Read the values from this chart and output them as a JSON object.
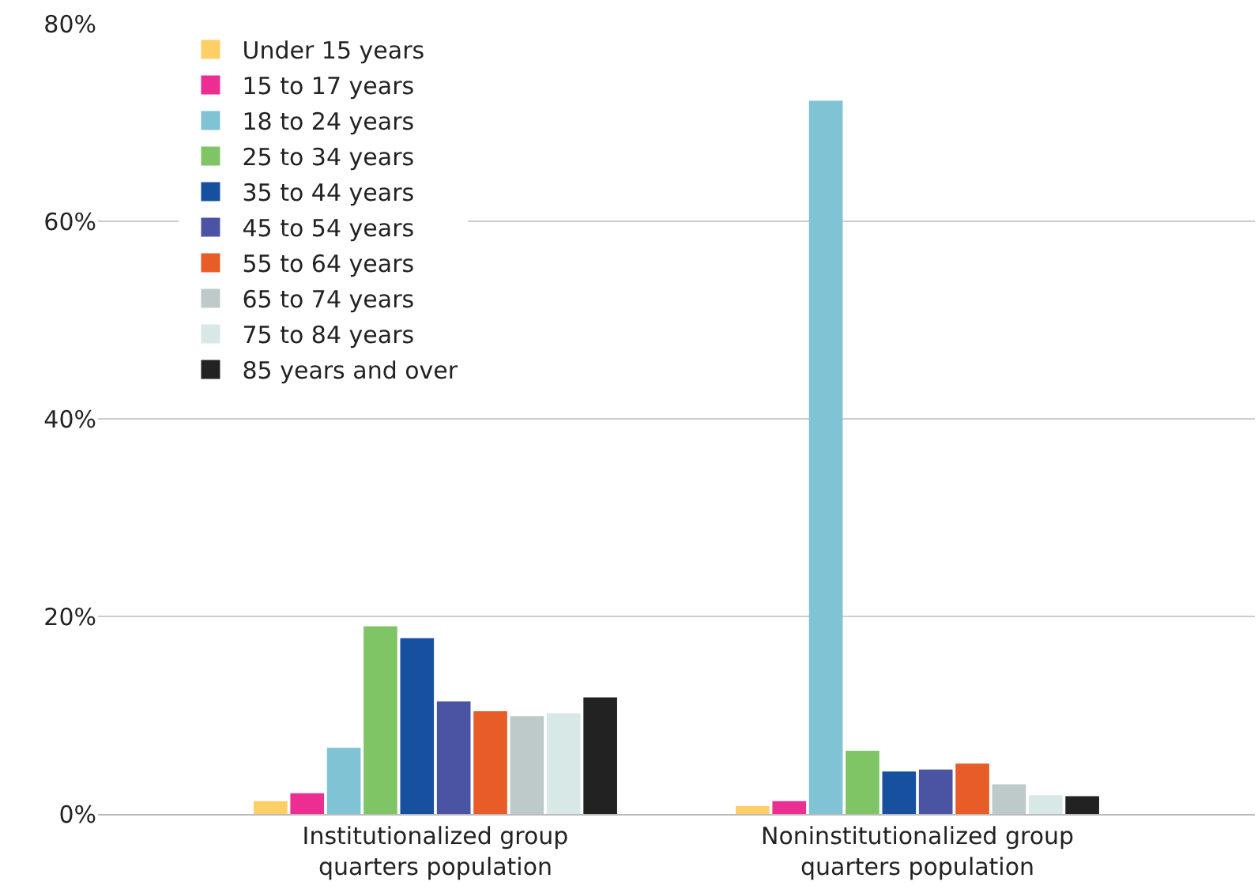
{
  "chart_data": {
    "type": "bar",
    "categories": [
      "Institutionalized group quarters population",
      "Noninstitutionalized group quarters population"
    ],
    "series": [
      {
        "name": "Under 15 years",
        "color": "#fdcf66",
        "values": [
          1.3,
          0.8
        ]
      },
      {
        "name": "15 to 17 years",
        "color": "#ec2d91",
        "values": [
          2.1,
          1.3
        ]
      },
      {
        "name": "18 to 24 years",
        "color": "#7fc3d4",
        "values": [
          6.7,
          72.2
        ]
      },
      {
        "name": "25 to 34 years",
        "color": "#80c565",
        "values": [
          19.0,
          6.4
        ]
      },
      {
        "name": "35 to 44 years",
        "color": "#17509f",
        "values": [
          17.8,
          4.3
        ]
      },
      {
        "name": "45 to 54 years",
        "color": "#4a54a3",
        "values": [
          11.4,
          4.5
        ]
      },
      {
        "name": "55 to 64 years",
        "color": "#e75c27",
        "values": [
          10.4,
          5.1
        ]
      },
      {
        "name": "65 to 74 years",
        "color": "#bec9ca",
        "values": [
          9.9,
          3.0
        ]
      },
      {
        "name": "75 to 84 years",
        "color": "#d7e8e6",
        "values": [
          10.2,
          1.9
        ]
      },
      {
        "name": "85 years and over",
        "color": "#222222",
        "values": [
          11.8,
          1.8
        ]
      }
    ],
    "ylim": [
      0,
      80
    ],
    "yticks": [
      {
        "value": 0,
        "label": "0%"
      },
      {
        "value": 20,
        "label": "20%"
      },
      {
        "value": 40,
        "label": "40%"
      },
      {
        "value": 60,
        "label": "60%"
      },
      {
        "value": 80,
        "label": "80%"
      }
    ],
    "grid": "y",
    "legend": "top left"
  }
}
